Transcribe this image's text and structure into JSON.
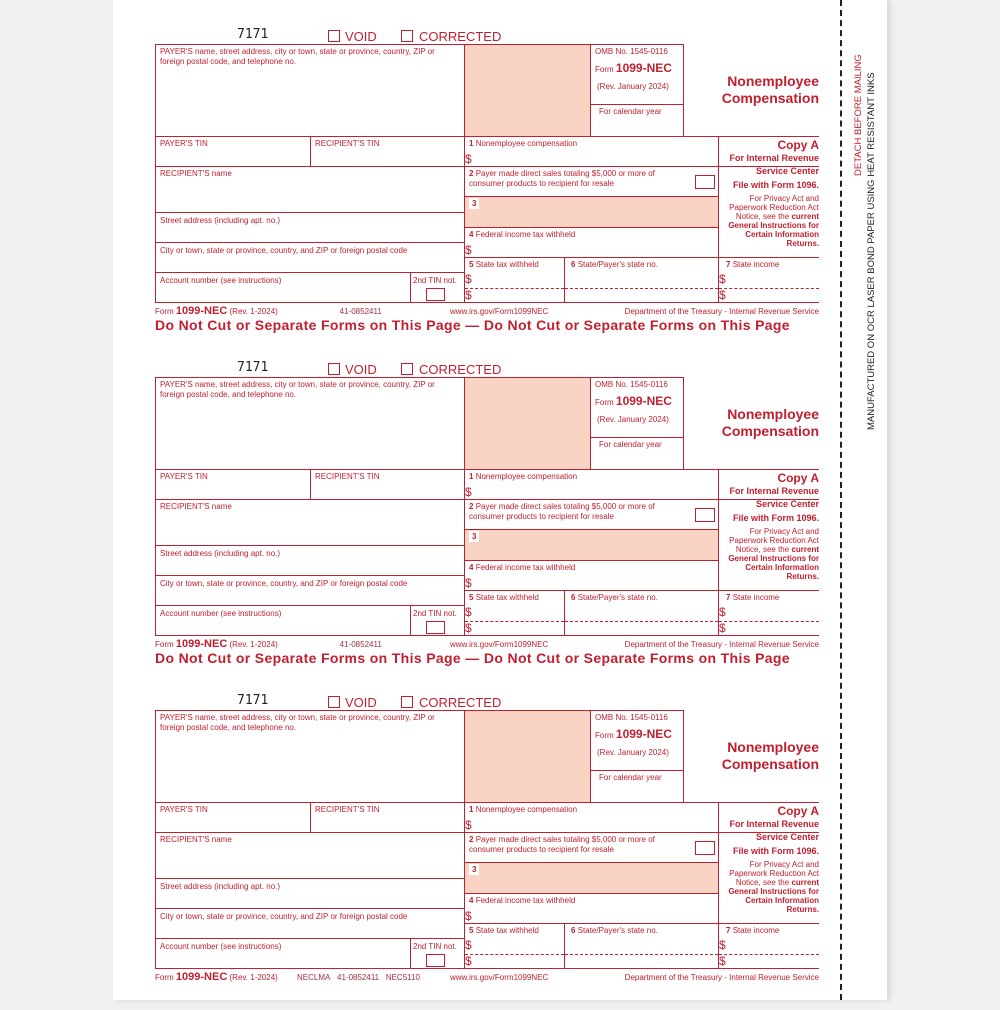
{
  "labels": {
    "void": "VOID",
    "corrected": "CORRECTED",
    "payer_name": "PAYER'S name, street address, city or town, state or province, country, ZIP or foreign postal code, and telephone no.",
    "omb": "OMB No. 1545-0116",
    "form_prefix": "Form",
    "form_name": "1099-NEC",
    "rev": "(Rev. January 2024)",
    "calendar_year": "For calendar year",
    "title_line1": "Nonemployee",
    "title_line2": "Compensation",
    "payer_tin": "PAYER'S TIN",
    "recipient_tin": "RECIPIENT'S TIN",
    "recipient_name": "RECIPIENT'S name",
    "street": "Street address (including apt. no.)",
    "city": "City or town, state or province, country, and ZIP or foreign postal code",
    "account": "Account number (see instructions)",
    "second_tin": "2nd TIN not.",
    "box1_num": "1",
    "box1": "Nonemployee compensation",
    "box2_num": "2",
    "box2": "Payer made direct sales totaling $5,000 or more of consumer products to recipient for resale",
    "box3_num": "3",
    "box4_num": "4",
    "box4": "Federal income tax withheld",
    "box5_num": "5",
    "box5": "State tax withheld",
    "box6_num": "6",
    "box6": "State/Payer's state no.",
    "box7_num": "7",
    "box7": "State income",
    "dollar": "$",
    "copy": "Copy A",
    "copy_for1": "For Internal Revenue",
    "copy_for2": "Service Center",
    "file_with": "File with Form 1096.",
    "privacy1": "For Privacy Act and",
    "privacy2": "Paperwork Reduction Act",
    "privacy3": "Notice, see the",
    "privacy3b": "current",
    "privacy4": "General Instructions for",
    "privacy5": "Certain Information",
    "privacy6": "Returns.",
    "footer_rev": "(Rev. 1-2024)",
    "footer_ein": "41-0852411",
    "footer_url": "www.irs.gov/Form1099NEC",
    "footer_dept": "Department of the Treasury - Internal Revenue Service",
    "do_not_cut": "Do Not Cut or Separate Forms on This Page — Do Not Cut or Separate Forms on This Page"
  },
  "forms": [
    {
      "code": "7171",
      "footer_prefix": "",
      "footer_suffix": "",
      "show_do_not_cut": true
    },
    {
      "code": "7171",
      "footer_prefix": "",
      "footer_suffix": "",
      "show_do_not_cut": true
    },
    {
      "code": "7171",
      "footer_prefix": "NECLMA",
      "footer_suffix": "NEC5110",
      "show_do_not_cut": false
    }
  ],
  "side": {
    "detach": "DETACH BEFORE MAILING",
    "manufactured": "MANUFACTURED ON OCR LASER BOND PAPER USING HEAT RESISTANT INKS"
  },
  "colors": {
    "ink": "#c0202f",
    "shade": "#f9d3c3"
  }
}
